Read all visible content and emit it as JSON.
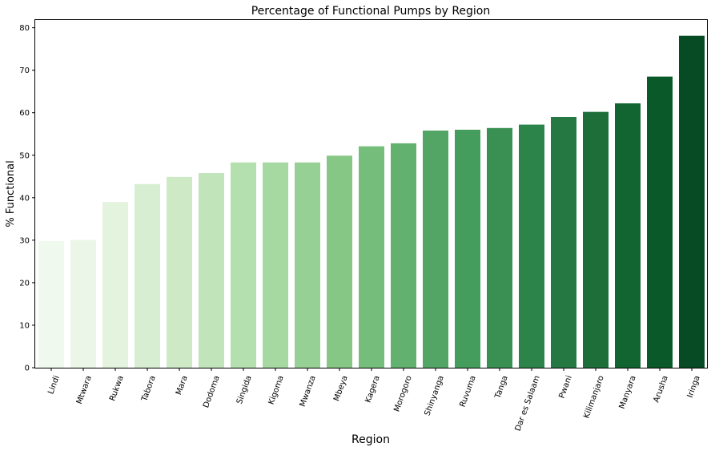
{
  "chart_data": {
    "type": "bar",
    "title": "Percentage of Functional Pumps by Region",
    "xlabel": "Region",
    "ylabel": "% Functional",
    "ylim": [
      0,
      82
    ],
    "yticks": [
      0,
      10,
      20,
      30,
      40,
      50,
      60,
      70,
      80
    ],
    "grid": false,
    "categories": [
      "Lindi",
      "Mtwara",
      "Rukwa",
      "Tabora",
      "Mara",
      "Dodoma",
      "Singida",
      "Kigoma",
      "Mwanza",
      "Mbeya",
      "Kagera",
      "Morogoro",
      "Shinyanga",
      "Ruvuma",
      "Tanga",
      "Dar es Salaam",
      "Pwani",
      "Kilimanjaro",
      "Manyara",
      "Arusha",
      "Iringa"
    ],
    "values": [
      29.8,
      30.1,
      39.0,
      43.2,
      44.9,
      45.8,
      48.3,
      48.3,
      48.3,
      49.9,
      52.1,
      52.8,
      55.8,
      56.0,
      56.4,
      57.2,
      59.0,
      60.2,
      62.2,
      68.5,
      78.1
    ],
    "colors": [
      "#f0f9ee",
      "#ebf6e8",
      "#e3f3de",
      "#d8eed3",
      "#cde9c6",
      "#c1e4ba",
      "#b4dfae",
      "#a6d8a1",
      "#97d094",
      "#87c786",
      "#74bd7a",
      "#62b16f",
      "#52a564",
      "#449d5d",
      "#3a9052",
      "#2d844a",
      "#257842",
      "#1d6e39",
      "#126531",
      "#0a5928",
      "#064b23"
    ]
  }
}
